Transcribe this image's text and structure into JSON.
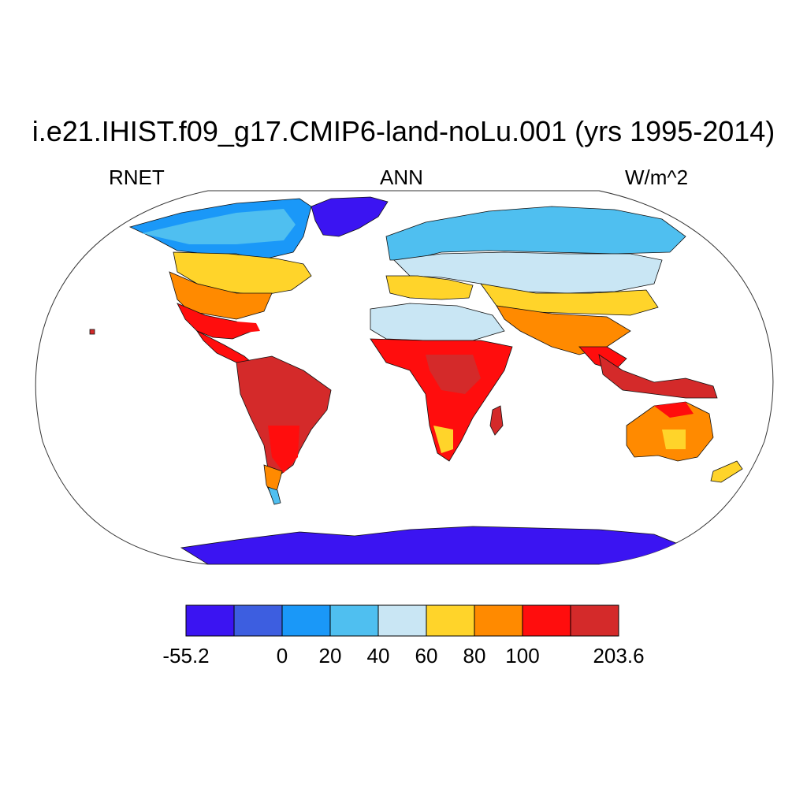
{
  "title": "i.e21.IHIST.f09_g17.CMIP6-land-noLu.001 (yrs 1995-2014)",
  "left_label": "RNET",
  "center_label": "ANN",
  "right_label": "W/m^2",
  "colorbar": {
    "colors": [
      "#3b14f2",
      "#3d5ee0",
      "#1a98f8",
      "#4fbff0",
      "#c9e6f4",
      "#ffd42a",
      "#ff8a00",
      "#ff0d0d",
      "#d42a2a"
    ],
    "labels": [
      {
        "text": "-55.2",
        "edge": 0
      },
      {
        "text": "0",
        "edge": 2
      },
      {
        "text": "20",
        "edge": 3
      },
      {
        "text": "40",
        "edge": 4
      },
      {
        "text": "60",
        "edge": 5
      },
      {
        "text": "80",
        "edge": 6
      },
      {
        "text": "100",
        "edge": 7
      },
      {
        "text": "203.6",
        "edge": 9
      }
    ]
  }
}
